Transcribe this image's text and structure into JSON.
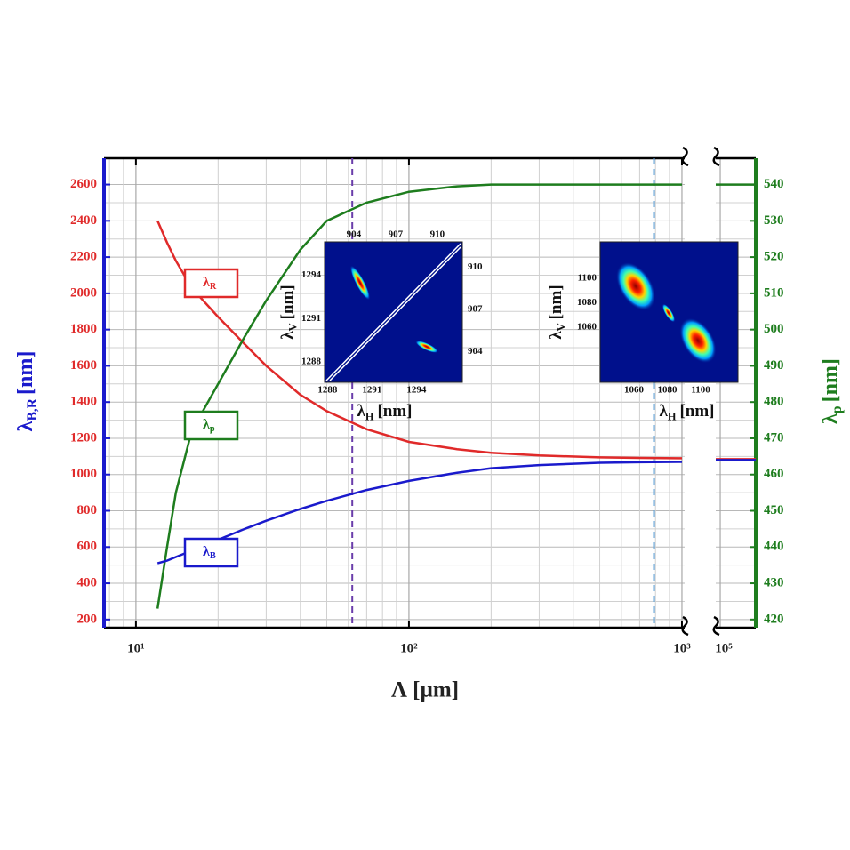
{
  "chart_data": {
    "type": "line",
    "x_title": "Λ [µm]",
    "y_title": {
      "symbol": "λ",
      "sub": "B,R",
      "unit": "[nm]"
    },
    "y2_title": {
      "symbol": "λ",
      "sub": "p",
      "unit": "[nm]"
    },
    "log_x": true,
    "grid": true,
    "xlim": [
      7.64,
      1023
    ],
    "xticks": [
      {
        "value": 10,
        "label": "10¹"
      },
      {
        "value": 100,
        "label": "10²"
      },
      {
        "value": 1000,
        "label": "10³"
      }
    ],
    "xminorticks": [
      8,
      9,
      20,
      30,
      40,
      50,
      60,
      70,
      80,
      90,
      200,
      300,
      400,
      500,
      600,
      700,
      800,
      900
    ],
    "x2lim": [
      96300,
      134900
    ],
    "x2ticks": [
      {
        "value": 100000,
        "label": "10⁵"
      }
    ],
    "ylim": [
      155,
      2745
    ],
    "yticks": [
      200,
      400,
      600,
      800,
      1000,
      1200,
      1400,
      1600,
      1800,
      2000,
      2200,
      2400,
      2600
    ],
    "yminorticks": [
      300,
      500,
      700,
      900,
      1100,
      1300,
      1500,
      1700,
      1900,
      2100,
      2300,
      2500
    ],
    "y2lim": [
      417.75,
      547.25
    ],
    "y2ticks": [
      420,
      430,
      440,
      450,
      460,
      470,
      480,
      490,
      500,
      510,
      520,
      530,
      540
    ],
    "x": [
      12,
      13,
      14,
      16,
      20,
      25,
      30,
      40,
      50,
      70,
      100,
      150,
      200,
      300,
      500,
      700,
      1000
    ],
    "x2": [
      96300,
      134900
    ],
    "series": [
      {
        "name": "λ",
        "subscript": "R",
        "color": "#e02a2a",
        "axis": "y",
        "values": [
          2400,
          2280,
          2180,
          2030,
          1870,
          1720,
          1600,
          1440,
          1350,
          1250,
          1180,
          1140,
          1120,
          1105,
          1095,
          1092,
          1090
        ],
        "values2": [
          1085,
          1085
        ]
      },
      {
        "name": "λ",
        "subscript": "p",
        "color": "#1e7d1e",
        "axis": "y2",
        "values": [
          423,
          440,
          455,
          472,
          485,
          498,
          508,
          522,
          530,
          535,
          538,
          539.5,
          540,
          540,
          540,
          540,
          540
        ],
        "values2": [
          540,
          540
        ]
      },
      {
        "name": "λ",
        "subscript": "B",
        "color": "#1a1acc",
        "axis": "y",
        "values": [
          510,
          525,
          545,
          580,
          640,
          700,
          745,
          810,
          855,
          915,
          965,
          1010,
          1035,
          1052,
          1065,
          1068,
          1070
        ],
        "values2": [
          1080,
          1080
        ]
      }
    ],
    "markers": [
      {
        "x": 62,
        "color": "#6a3daa"
      },
      {
        "x": 790,
        "color": "#5aa0d8"
      }
    ],
    "insets": [
      {
        "xlim": [
          1287.8,
          1297.1
        ],
        "xticks": [
          1288,
          1291,
          1294
        ],
        "x2lim": [
          901.9,
          911.8
        ],
        "x2ticks": [
          904,
          907,
          910
        ],
        "ylim": [
          1286.6,
          1296.3
        ],
        "yticks": [
          1288,
          1291,
          1294
        ],
        "y2lim": [
          901.8,
          911.8
        ],
        "y2ticks": [
          904,
          907,
          910
        ],
        "xlabel": {
          "symbol": "λ",
          "sub": "H",
          "unit": "[nm]"
        },
        "ylabel": {
          "symbol": "λ",
          "sub": "V",
          "unit": "[nm]"
        }
      },
      {
        "xlim": [
          1039.7,
          1122.4
        ],
        "xticks": [
          1060,
          1080,
          1100
        ],
        "ylim": [
          1015,
          1129.8
        ],
        "yticks": [
          1060,
          1080,
          1100
        ],
        "xlabel": {
          "symbol": "λ",
          "sub": "H",
          "unit": "[nm]"
        },
        "ylabel": {
          "symbol": "λ",
          "sub": "V",
          "unit": "[nm]"
        }
      }
    ]
  }
}
